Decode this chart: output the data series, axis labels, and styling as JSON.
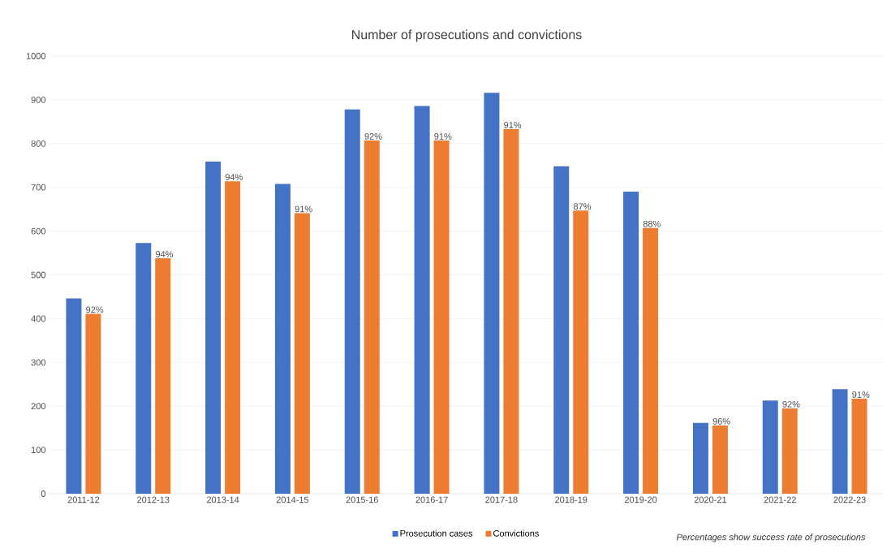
{
  "chart_data": {
    "type": "bar",
    "title": "Number of prosecutions and convictions",
    "categories": [
      "2011-12",
      "2012-13",
      "2013-14",
      "2014-15",
      "2015-16",
      "2016-17",
      "2017-18",
      "2018-19",
      "2019-20",
      "2020-21",
      "2021-22",
      "2022-23"
    ],
    "series": [
      {
        "name": "Prosecution cases",
        "color": "#4472c4",
        "values": [
          446,
          573,
          759,
          708,
          878,
          886,
          916,
          748,
          690,
          162,
          213,
          239
        ]
      },
      {
        "name": "Convictions",
        "color": "#ed7d31",
        "values": [
          411,
          538,
          714,
          641,
          807,
          807,
          833,
          647,
          607,
          156,
          195,
          217
        ]
      }
    ],
    "ylim": [
      0,
      1000
    ],
    "yticks": [
      0,
      100,
      200,
      300,
      400,
      500,
      600,
      700,
      800,
      900,
      1000
    ],
    "grid": "y",
    "legend": "bottom",
    "annotations": [
      {
        "text": "92%",
        "x": "2011-12",
        "y": 411
      },
      {
        "text": "94%",
        "x": "2012-13",
        "y": 538
      },
      {
        "text": "94%",
        "x": "2013-14",
        "y": 714
      },
      {
        "text": "91%",
        "x": "2014-15",
        "y": 641
      },
      {
        "text": "92%",
        "x": "2015-16",
        "y": 807
      },
      {
        "text": "91%",
        "x": "2016-17",
        "y": 807
      },
      {
        "text": "91%",
        "x": "2017-18",
        "y": 833
      },
      {
        "text": "87%",
        "x": "2018-19",
        "y": 647
      },
      {
        "text": "88%",
        "x": "2019-20",
        "y": 607
      },
      {
        "text": "96%",
        "x": "2020-21",
        "y": 156
      },
      {
        "text": "92%",
        "x": "2021-22",
        "y": 195
      },
      {
        "text": "91%",
        "x": "2022-23",
        "y": 217
      },
      "Percentages show success rate of prosecutions"
    ]
  }
}
